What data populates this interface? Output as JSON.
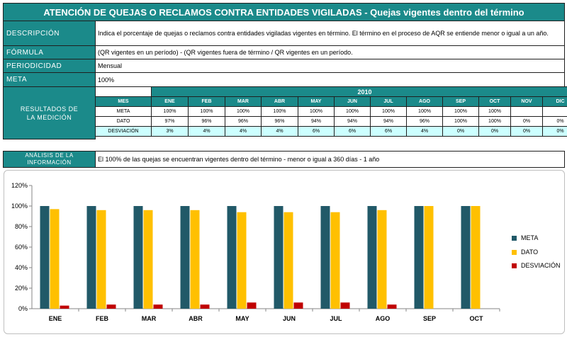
{
  "header": {
    "title": "ATENCIÓN DE QUEJAS O RECLAMOS CONTRA ENTIDADES VIGILADAS - Quejas vigentes dentro del término"
  },
  "rows": {
    "descripcion": {
      "label": "DESCRIPCIÓN",
      "value": "Indica el porcentaje de quejas o reclamos contra entidades vigiladas vigentes en término. El término en el proceso de AQR se entiende menor o igual a un año."
    },
    "formula": {
      "label": "FÓRMULA",
      "value": "(QR vigentes en un período) - (QR vigentes fuera de término / QR vigentes en un período."
    },
    "periodicidad": {
      "label": "PERIODICIDAD",
      "value": "Mensual"
    },
    "meta": {
      "label": "META",
      "value": "100%"
    }
  },
  "resultados": {
    "label_line1": "RESULTADOS DE",
    "label_line2": "LA MEDICIÓN",
    "year": "2010",
    "header_label": "MES",
    "months": [
      "ENE",
      "FEB",
      "MAR",
      "ABR",
      "MAY",
      "JUN",
      "JUL",
      "AGO",
      "SEP",
      "OCT",
      "NOV",
      "DIC"
    ],
    "rows": [
      {
        "label": "META",
        "values": [
          "100%",
          "100%",
          "100%",
          "100%",
          "100%",
          "100%",
          "100%",
          "100%",
          "100%",
          "100%",
          "",
          ""
        ]
      },
      {
        "label": "DATO",
        "values": [
          "97%",
          "96%",
          "96%",
          "96%",
          "94%",
          "94%",
          "94%",
          "96%",
          "100%",
          "100%",
          "0%",
          "0%"
        ]
      },
      {
        "label": "DESVIACIÓN",
        "values": [
          "3%",
          "4%",
          "4%",
          "4%",
          "6%",
          "6%",
          "6%",
          "4%",
          "0%",
          "0%",
          "0%",
          "0%"
        ]
      }
    ]
  },
  "analisis": {
    "label_line1": "ANÁLISIS DE LA",
    "label_line2": "INFORMACIÓN",
    "value": "El 100% de las quejas se encuentran vigentes dentro del término - menor o igual a 360 días - 1 año"
  },
  "colors": {
    "meta": "#215968",
    "dato": "#ffc000",
    "desviacion": "#c00000",
    "teal": "#1b8a8a"
  },
  "chart_data": {
    "type": "bar",
    "categories": [
      "ENE",
      "FEB",
      "MAR",
      "ABR",
      "MAY",
      "JUN",
      "JUL",
      "AGO",
      "SEP",
      "OCT"
    ],
    "series": [
      {
        "name": "META",
        "values": [
          100,
          100,
          100,
          100,
          100,
          100,
          100,
          100,
          100,
          100
        ]
      },
      {
        "name": "DATO",
        "values": [
          97,
          96,
          96,
          96,
          94,
          94,
          94,
          96,
          100,
          100
        ]
      },
      {
        "name": "DESVIACIÓN",
        "values": [
          3,
          4,
          4,
          4,
          6,
          6,
          6,
          4,
          0,
          0
        ]
      }
    ],
    "ylim": [
      0,
      120
    ],
    "yticks": [
      "0%",
      "20%",
      "40%",
      "60%",
      "80%",
      "100%",
      "120%"
    ],
    "legend_position": "right",
    "grid": false
  }
}
